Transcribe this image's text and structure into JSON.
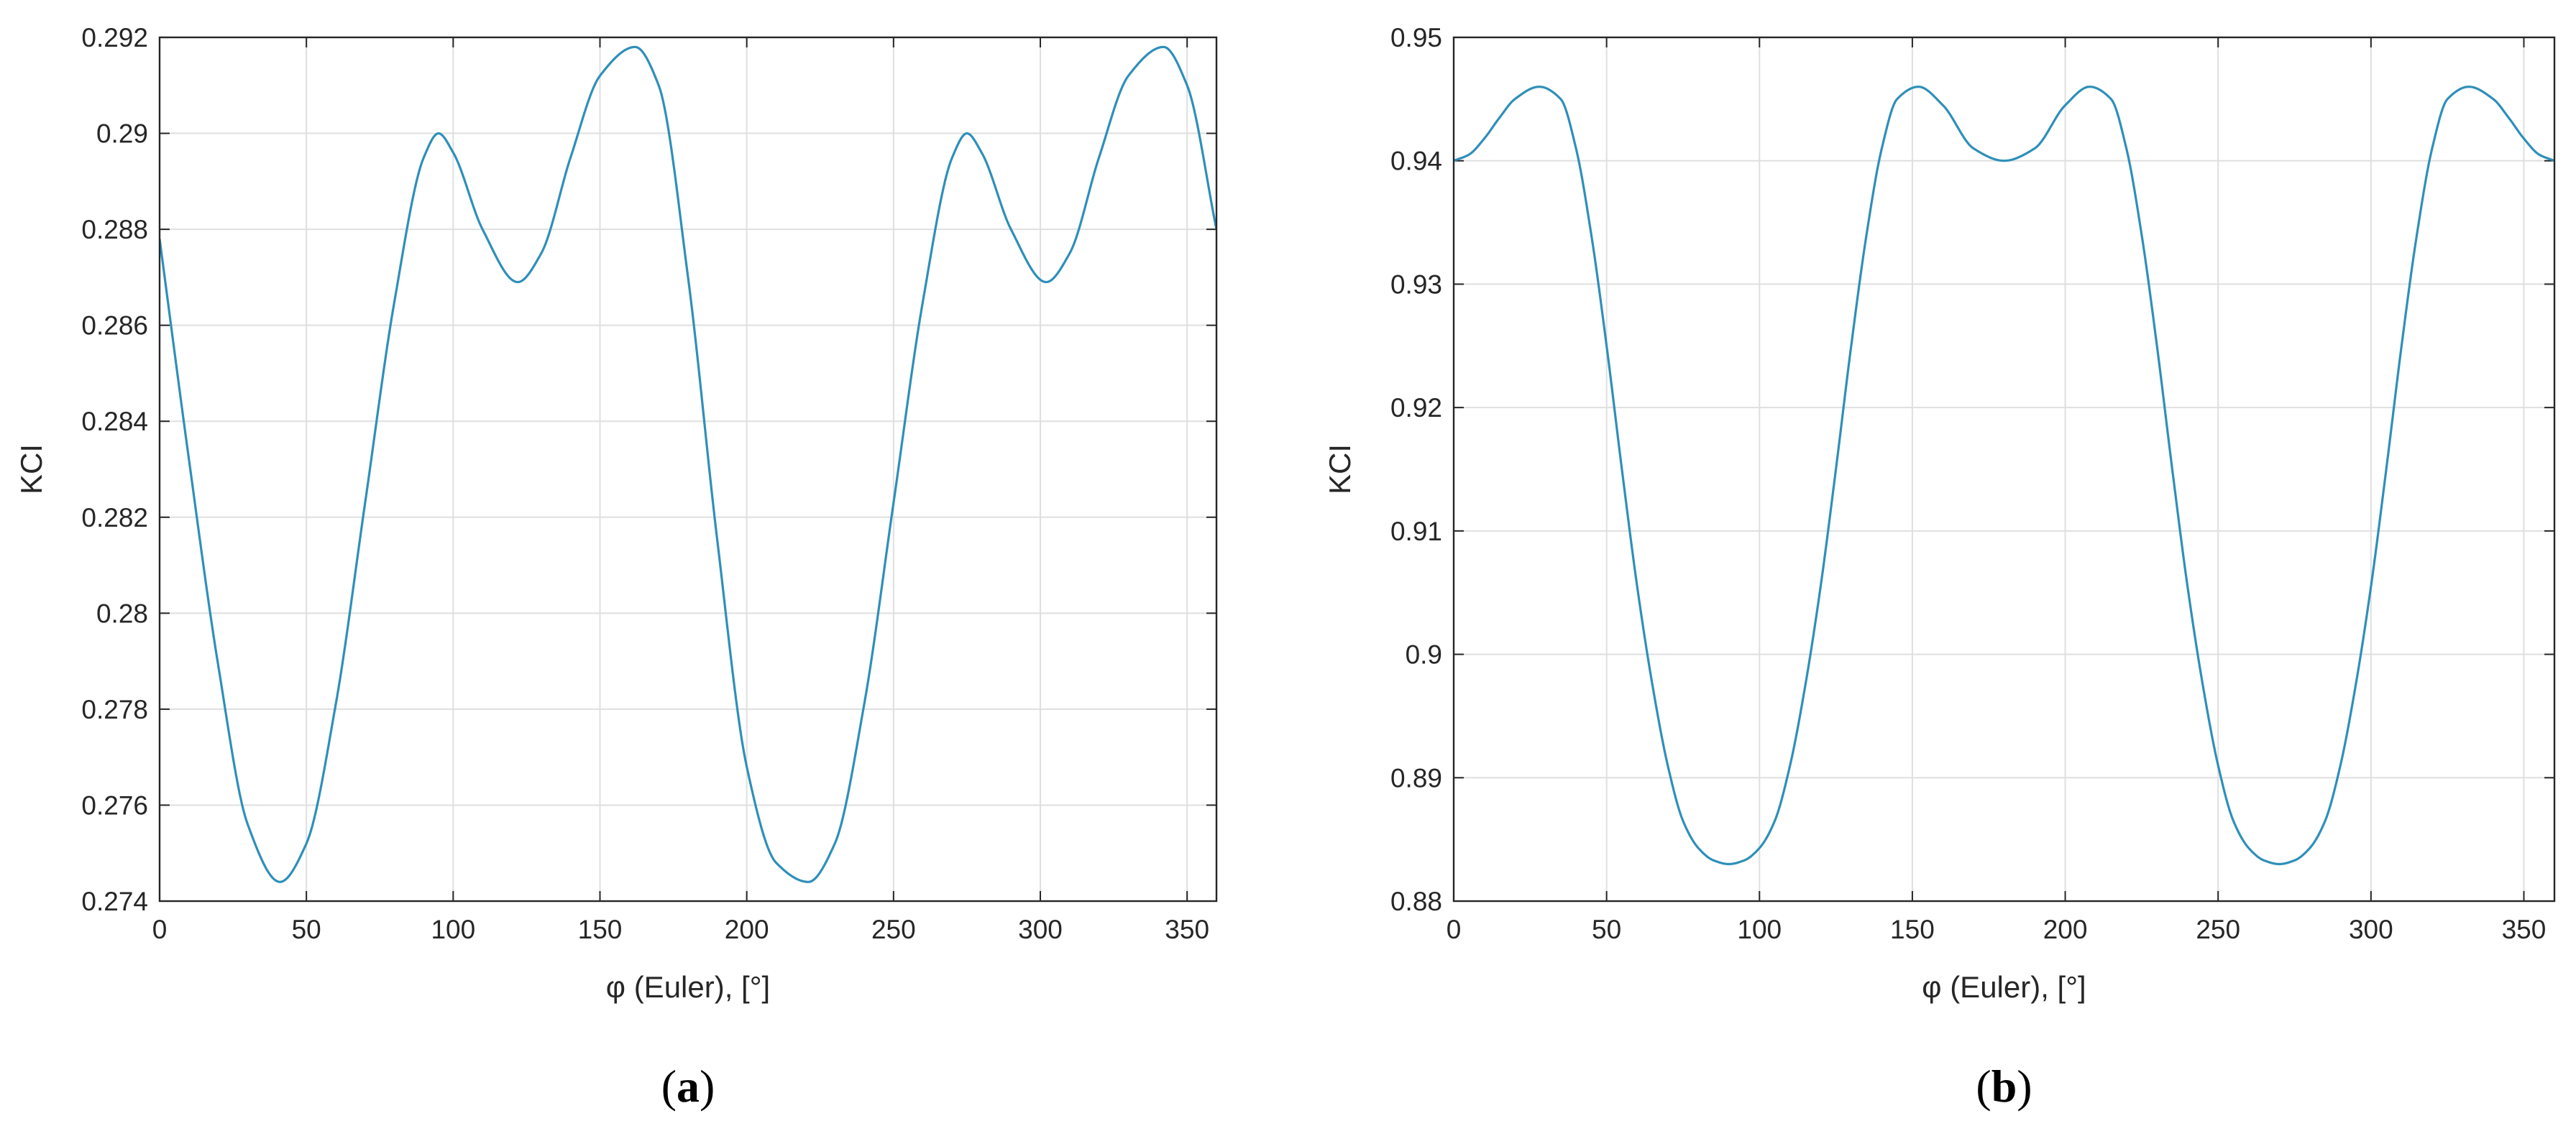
{
  "chart_data": [
    {
      "type": "line",
      "panel_label": "a",
      "xlabel": "φ (Euler), [°]",
      "ylabel": "KCI",
      "xlim": [
        0,
        360
      ],
      "ylim": [
        0.274,
        0.292
      ],
      "xticks": [
        "0",
        "50",
        "100",
        "150",
        "200",
        "250",
        "300",
        "350"
      ],
      "yticks": [
        "0.274",
        "0.276",
        "0.278",
        "0.28",
        "0.282",
        "0.284",
        "0.286",
        "0.288",
        "0.29",
        "0.292"
      ],
      "grid": true,
      "series_color": "#2e8fb9",
      "x": [
        0,
        10,
        20,
        30,
        41,
        50,
        60,
        70,
        80,
        90,
        95,
        100,
        110,
        122,
        130,
        140,
        150,
        162,
        170,
        180,
        190,
        200,
        210,
        221,
        230,
        240,
        250,
        260,
        270,
        275,
        280,
        290,
        302,
        310,
        320,
        330,
        342,
        350,
        360
      ],
      "y": [
        0.2878,
        0.2832,
        0.2789,
        0.2756,
        0.2744,
        0.2752,
        0.2781,
        0.2823,
        0.2865,
        0.2895,
        0.29,
        0.2896,
        0.288,
        0.2869,
        0.2875,
        0.2895,
        0.2912,
        0.2918,
        0.291,
        0.287,
        0.2815,
        0.2768,
        0.2748,
        0.2744,
        0.2752,
        0.2781,
        0.2823,
        0.2865,
        0.2895,
        0.29,
        0.2896,
        0.288,
        0.2869,
        0.2875,
        0.2895,
        0.2912,
        0.2918,
        0.291,
        0.288
      ]
    },
    {
      "type": "line",
      "panel_label": "b",
      "xlabel": "φ (Euler), [°]",
      "ylabel": "KCI",
      "xlim": [
        0,
        360
      ],
      "ylim": [
        0.88,
        0.95
      ],
      "xticks": [
        "0",
        "50",
        "100",
        "150",
        "200",
        "250",
        "300",
        "350"
      ],
      "yticks": [
        "0.88",
        "0.89",
        "0.9",
        "0.91",
        "0.92",
        "0.93",
        "0.94",
        "0.95"
      ],
      "grid": true,
      "series_color": "#2e8fb9",
      "x": [
        0,
        5,
        10,
        15,
        20,
        28,
        35,
        40,
        45,
        50,
        55,
        60,
        65,
        70,
        75,
        80,
        85,
        90,
        95,
        100,
        105,
        110,
        115,
        120,
        125,
        130,
        135,
        140,
        145,
        152,
        160,
        170,
        180,
        190,
        200,
        208,
        215,
        220,
        225,
        230,
        235,
        240,
        245,
        250,
        255,
        260,
        265,
        270,
        275,
        280,
        285,
        290,
        295,
        300,
        305,
        310,
        315,
        320,
        325,
        332,
        340,
        345,
        350,
        355,
        360
      ],
      "y": [
        0.94,
        0.9405,
        0.9418,
        0.9435,
        0.945,
        0.946,
        0.945,
        0.941,
        0.934,
        0.925,
        0.915,
        0.9055,
        0.8975,
        0.891,
        0.8865,
        0.8843,
        0.8833,
        0.883,
        0.8833,
        0.8843,
        0.8865,
        0.891,
        0.8975,
        0.9055,
        0.915,
        0.925,
        0.934,
        0.941,
        0.945,
        0.946,
        0.9445,
        0.941,
        0.94,
        0.941,
        0.9445,
        0.946,
        0.945,
        0.941,
        0.934,
        0.925,
        0.915,
        0.9055,
        0.8975,
        0.891,
        0.8865,
        0.8843,
        0.8833,
        0.883,
        0.8833,
        0.8843,
        0.8865,
        0.891,
        0.8975,
        0.9055,
        0.915,
        0.925,
        0.934,
        0.941,
        0.945,
        0.946,
        0.945,
        0.9435,
        0.9418,
        0.9405,
        0.94
      ]
    }
  ]
}
